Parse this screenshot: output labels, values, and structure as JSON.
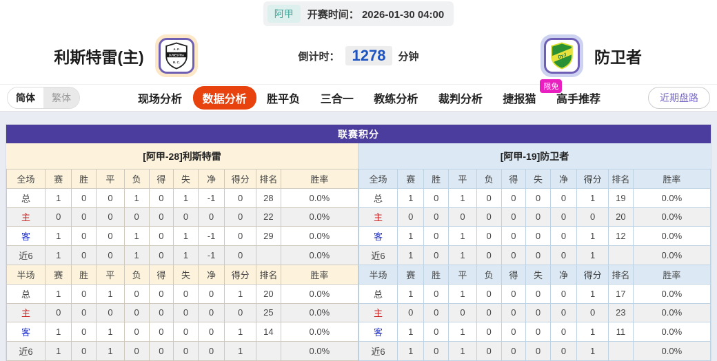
{
  "topbar": {
    "league_badge": "阿甲",
    "kickoff_text": "开赛时间： 2026-01-30 04:00"
  },
  "match": {
    "home_name": "利斯特雷(主)",
    "away_name": "防卫者",
    "home_logo_text": "D.RIESTRA",
    "home_logo_top": "A. F.",
    "home_logo_bottom": "R. C.",
    "away_logo_text": "DyJ",
    "countdown_label": "倒计时：",
    "countdown_value": "1278",
    "countdown_unit": "分钟"
  },
  "nav": {
    "lang_simplified": "简体",
    "lang_traditional": "繁体",
    "tabs": [
      {
        "label": "现场分析",
        "active": false
      },
      {
        "label": "数据分析",
        "active": true
      },
      {
        "label": "胜平负",
        "active": false
      },
      {
        "label": "三合一",
        "active": false
      },
      {
        "label": "教练分析",
        "active": false
      },
      {
        "label": "裁判分析",
        "active": false
      },
      {
        "label": "捷报猫",
        "active": false,
        "badge": "限免"
      },
      {
        "label": "高手推荐",
        "active": false
      }
    ],
    "recent_button": "近期盘路"
  },
  "table": {
    "title": "联赛积分",
    "full_label": "全场",
    "half_label": "半场",
    "columns": [
      "赛",
      "胜",
      "平",
      "负",
      "得",
      "失",
      "净",
      "得分",
      "排名",
      "胜率"
    ],
    "teams": [
      {
        "header": "[阿甲-28]利斯特雷",
        "full": [
          {
            "label": "总",
            "values": [
              "1",
              "0",
              "0",
              "1",
              "0",
              "1",
              "-1",
              "0",
              "28",
              "0.0%"
            ]
          },
          {
            "label": "主",
            "values": [
              "0",
              "0",
              "0",
              "0",
              "0",
              "0",
              "0",
              "0",
              "22",
              "0.0%"
            ]
          },
          {
            "label": "客",
            "values": [
              "1",
              "0",
              "0",
              "1",
              "0",
              "1",
              "-1",
              "0",
              "29",
              "0.0%"
            ]
          },
          {
            "label": "近6",
            "values": [
              "1",
              "0",
              "0",
              "1",
              "0",
              "1",
              "-1",
              "0",
              "",
              "0.0%"
            ]
          }
        ],
        "half": [
          {
            "label": "总",
            "values": [
              "1",
              "0",
              "1",
              "0",
              "0",
              "0",
              "0",
              "1",
              "20",
              "0.0%"
            ]
          },
          {
            "label": "主",
            "values": [
              "0",
              "0",
              "0",
              "0",
              "0",
              "0",
              "0",
              "0",
              "25",
              "0.0%"
            ]
          },
          {
            "label": "客",
            "values": [
              "1",
              "0",
              "1",
              "0",
              "0",
              "0",
              "0",
              "1",
              "14",
              "0.0%"
            ]
          },
          {
            "label": "近6",
            "values": [
              "1",
              "0",
              "1",
              "0",
              "0",
              "0",
              "0",
              "1",
              "",
              "0.0%"
            ]
          }
        ]
      },
      {
        "header": "[阿甲-19]防卫者",
        "full": [
          {
            "label": "总",
            "values": [
              "1",
              "0",
              "1",
              "0",
              "0",
              "0",
              "0",
              "1",
              "19",
              "0.0%"
            ]
          },
          {
            "label": "主",
            "values": [
              "0",
              "0",
              "0",
              "0",
              "0",
              "0",
              "0",
              "0",
              "20",
              "0.0%"
            ]
          },
          {
            "label": "客",
            "values": [
              "1",
              "0",
              "1",
              "0",
              "0",
              "0",
              "0",
              "1",
              "12",
              "0.0%"
            ]
          },
          {
            "label": "近6",
            "values": [
              "1",
              "0",
              "1",
              "0",
              "0",
              "0",
              "0",
              "1",
              "",
              "0.0%"
            ]
          }
        ],
        "half": [
          {
            "label": "总",
            "values": [
              "1",
              "0",
              "1",
              "0",
              "0",
              "0",
              "0",
              "1",
              "17",
              "0.0%"
            ]
          },
          {
            "label": "主",
            "values": [
              "0",
              "0",
              "0",
              "0",
              "0",
              "0",
              "0",
              "0",
              "23",
              "0.0%"
            ]
          },
          {
            "label": "客",
            "values": [
              "1",
              "0",
              "1",
              "0",
              "0",
              "0",
              "0",
              "1",
              "11",
              "0.0%"
            ]
          },
          {
            "label": "近6",
            "values": [
              "1",
              "0",
              "1",
              "0",
              "0",
              "0",
              "0",
              "1",
              "",
              "0.0%"
            ]
          }
        ]
      }
    ]
  },
  "colors": {
    "panel_title_bg": "#4b3d9e",
    "active_tab_bg": "#e8430f",
    "badge_bg": "#ea1fc0",
    "home_section_bg": "#fdf3dc",
    "away_section_bg": "#dce9f4",
    "home_row_label": "#cc2222",
    "away_row_label": "#2233cc",
    "countdown_value": "#1d53c0",
    "league_badge_text": "#3aa79b"
  }
}
